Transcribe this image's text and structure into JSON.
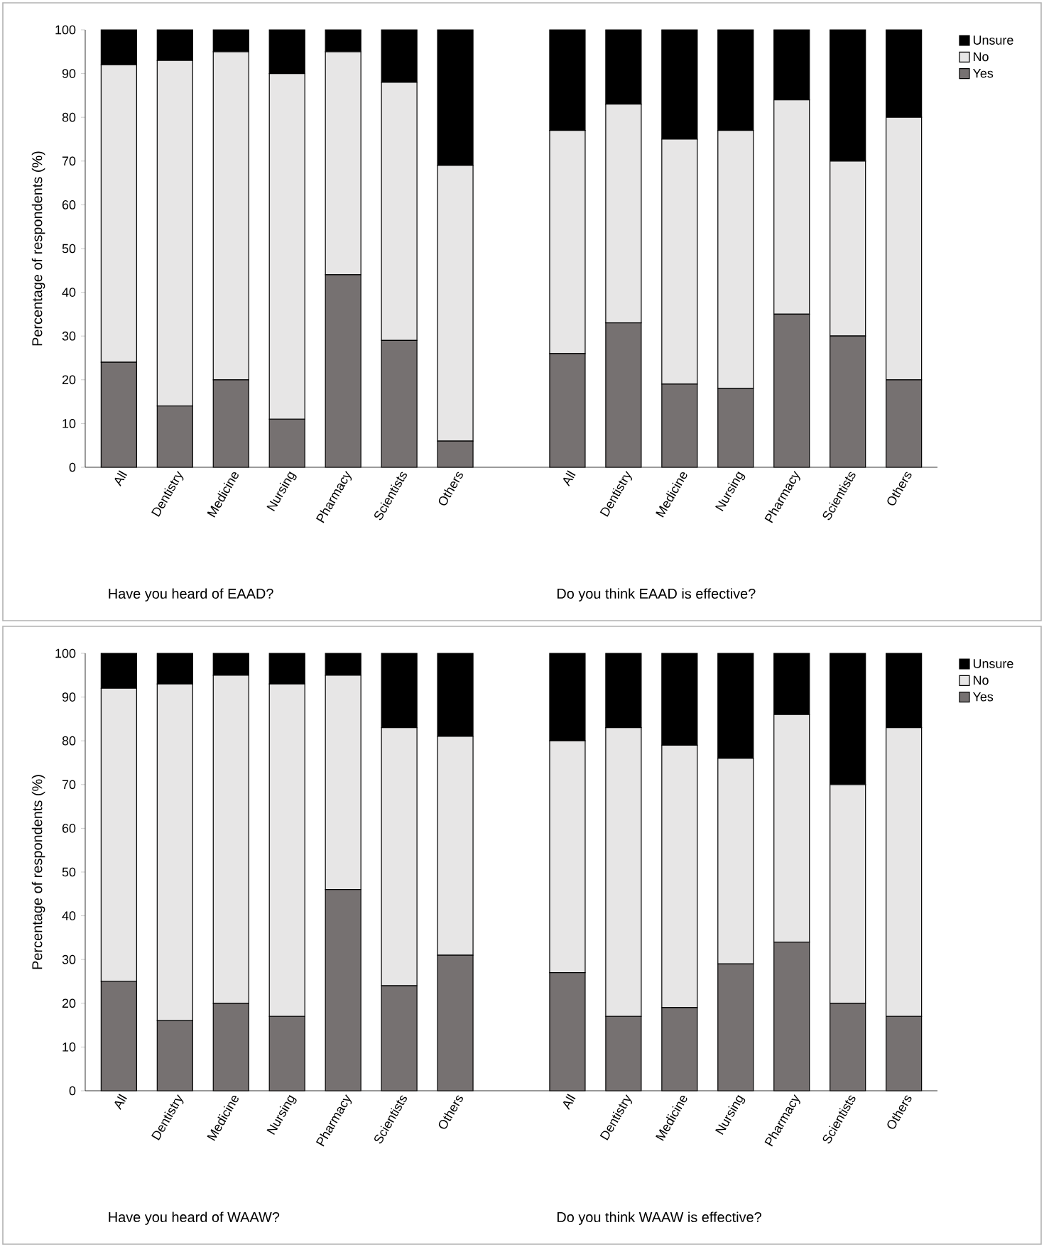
{
  "chart_data": [
    {
      "type": "bar",
      "stacked": true,
      "ylabel": "Percentage of respondents (%)",
      "categories": [
        "All",
        "Dentistry",
        "Medicine",
        "Nursing",
        "Pharmacy",
        "Scientists",
        "Others",
        null,
        "All",
        "Dentistry",
        "Medicine",
        "Nursing",
        "Pharmacy",
        "Scientists",
        "Others"
      ],
      "series": [
        {
          "name": "Yes",
          "color": "#767171",
          "values": [
            24,
            14,
            20,
            11,
            44,
            29,
            6,
            null,
            26,
            33,
            19,
            18,
            35,
            30,
            20
          ]
        },
        {
          "name": "No",
          "color": "#e7e6e6",
          "values": [
            68,
            79,
            75,
            79,
            51,
            59,
            63,
            null,
            51,
            50,
            56,
            59,
            49,
            40,
            60
          ]
        },
        {
          "name": "Unsure",
          "color": "#000000",
          "values": [
            8,
            7,
            5,
            10,
            5,
            12,
            31,
            null,
            23,
            17,
            25,
            23,
            16,
            30,
            20
          ]
        }
      ],
      "ylim": [
        0,
        100
      ],
      "yticks": [
        0,
        10,
        20,
        30,
        40,
        50,
        60,
        70,
        80,
        90,
        100
      ],
      "legend": "top right",
      "annotations": [
        "Have you heard of EAAD?",
        "Do you think EAAD is effective?"
      ]
    },
    {
      "type": "bar",
      "stacked": true,
      "ylabel": "Percentage of respondents (%)",
      "categories": [
        "All",
        "Dentistry",
        "Medicine",
        "Nursing",
        "Pharmacy",
        "Scientists",
        "Others",
        null,
        "All",
        "Dentistry",
        "Medicine",
        "Nursing",
        "Pharmacy",
        "Scientists",
        "Others"
      ],
      "series": [
        {
          "name": "Yes",
          "color": "#767171",
          "values": [
            25,
            16,
            20,
            17,
            46,
            24,
            31,
            null,
            27,
            17,
            19,
            29,
            34,
            20,
            17
          ]
        },
        {
          "name": "No",
          "color": "#e7e6e6",
          "values": [
            67,
            77,
            75,
            76,
            49,
            59,
            50,
            null,
            53,
            66,
            60,
            47,
            52,
            50,
            66
          ]
        },
        {
          "name": "Unsure",
          "color": "#000000",
          "values": [
            8,
            7,
            5,
            7,
            5,
            17,
            19,
            null,
            20,
            17,
            21,
            24,
            14,
            30,
            17
          ]
        }
      ],
      "ylim": [
        0,
        100
      ],
      "yticks": [
        0,
        10,
        20,
        30,
        40,
        50,
        60,
        70,
        80,
        90,
        100
      ],
      "legend": "top right",
      "annotations": [
        "Have you heard of WAAW?",
        "Do you think WAAW is effective?"
      ]
    }
  ]
}
